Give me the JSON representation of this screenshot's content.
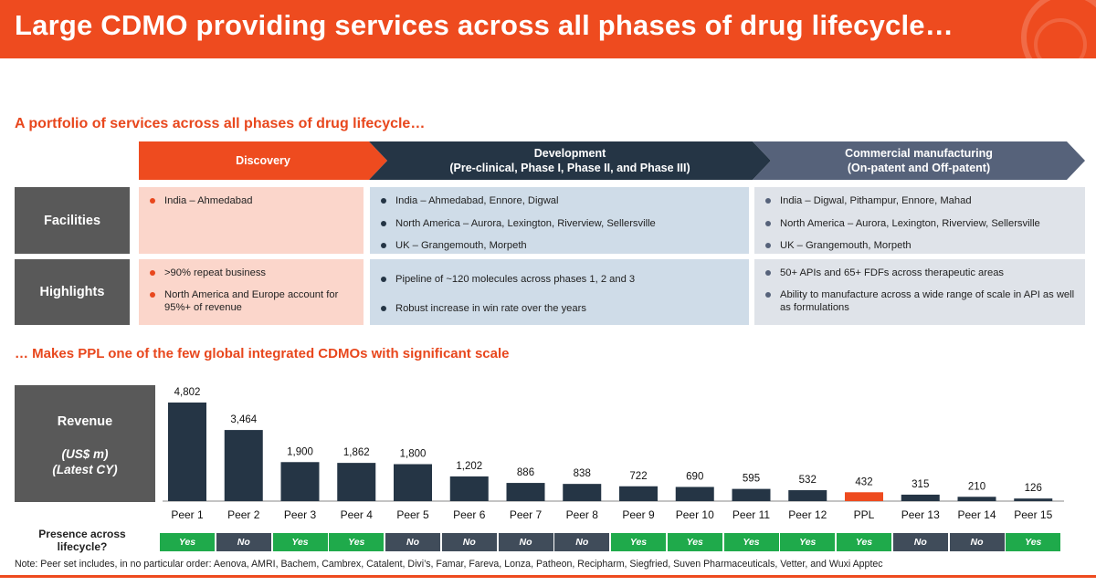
{
  "title": "Large CDMO providing services across all phases of drug lifecycle…",
  "section1_title": "A portfolio of services across all phases of drug lifecycle…",
  "section2_title": "… Makes PPL one of the few global integrated CDMOs with significant scale",
  "phases": [
    {
      "title": "Discovery",
      "subtitle": ""
    },
    {
      "title": "Development",
      "subtitle": "(Pre-clinical, Phase I, Phase II, and Phase III)"
    },
    {
      "title": "Commercial manufacturing",
      "subtitle": "(On-patent and Off-patent)"
    }
  ],
  "rows": {
    "facilities": {
      "label": "Facilities",
      "cells": [
        [
          "India – Ahmedabad"
        ],
        [
          "India – Ahmedabad, Ennore, Digwal",
          "North America – Aurora, Lexington, Riverview, Sellersville",
          "UK – Grangemouth, Morpeth"
        ],
        [
          "India – Digwal, Pithampur, Ennore, Mahad",
          "North America – Aurora, Lexington, Riverview, Sellersville",
          "UK – Grangemouth, Morpeth"
        ]
      ]
    },
    "highlights": {
      "label": "Highlights",
      "cells": [
        [
          ">90% repeat business",
          "North America and Europe account for 95%+ of revenue"
        ],
        [
          "Pipeline of ~120 molecules across phases 1, 2 and 3",
          "Robust increase in win rate over the years"
        ],
        [
          "50+ APIs and 65+ FDFs across therapeutic areas",
          "Ability to manufacture across a wide range of scale in API as well as formulations"
        ]
      ]
    }
  },
  "revenue_box": {
    "label": "Revenue",
    "unit": "(US$ m)",
    "period": "(Latest CY)"
  },
  "presence_label": "Presence across lifecycle?",
  "presence": [
    "Yes",
    "No",
    "Yes",
    "Yes",
    "No",
    "No",
    "No",
    "No",
    "Yes",
    "Yes",
    "Yes",
    "Yes",
    "Yes",
    "No",
    "No",
    "Yes"
  ],
  "note": "Note: Peer set  includes, in no particular order: Aenova, AMRI, Bachem, Cambrex, Catalent, Divi’s, Famar, Fareva, Lonza, Patheon, Recipharm, Siegfried, Suven Pharmaceuticals, Vetter, and Wuxi Apptec",
  "colors": {
    "brand": "#ee4b1f",
    "bar": "#253545",
    "highlight_bar": "#ee4b1f",
    "yes": "#1faa4b",
    "no": "#404c5a"
  },
  "chart_data": {
    "type": "bar",
    "title": "Revenue (US$ m) (Latest CY)",
    "categories": [
      "Peer 1",
      "Peer 2",
      "Peer 3",
      "Peer 4",
      "Peer 5",
      "Peer 6",
      "Peer 7",
      "Peer 8",
      "Peer 9",
      "Peer 10",
      "Peer 11",
      "Peer 12",
      "PPL",
      "Peer 13",
      "Peer 14",
      "Peer 15"
    ],
    "values": [
      4802,
      3464,
      1900,
      1862,
      1800,
      1202,
      886,
      838,
      722,
      690,
      595,
      532,
      432,
      315,
      210,
      126
    ],
    "value_labels": [
      "4,802",
      "3,464",
      "1,900",
      "1,862",
      "1,800",
      "1,202",
      "886",
      "838",
      "722",
      "690",
      "595",
      "532",
      "432",
      "315",
      "210",
      "126"
    ],
    "highlight": "PPL",
    "ylim": [
      0,
      4802
    ],
    "xlabel": "",
    "ylabel": "Revenue (US$ m)"
  }
}
